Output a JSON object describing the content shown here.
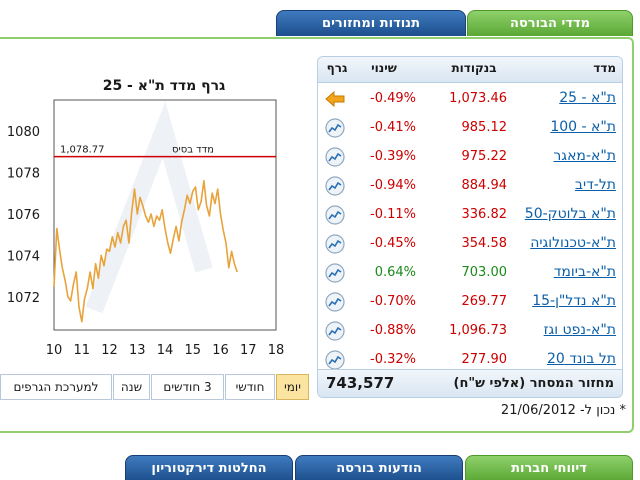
{
  "top_tabs": [
    {
      "label": "מדדי הבורסה",
      "active": true
    },
    {
      "label": "תנודות ומחזורים",
      "active": false
    }
  ],
  "table": {
    "headers": {
      "index": "מדד",
      "points": "בנקודות",
      "change": "שינוי",
      "graph": "גרף"
    },
    "rows": [
      {
        "name": "ת\"א - 25",
        "points": "1,073.46",
        "change": "-0.49%",
        "direction": "down",
        "icon": "arrow-left-icon"
      },
      {
        "name": "ת\"א - 100",
        "points": "985.12",
        "change": "-0.41%",
        "direction": "down",
        "icon": "chart-icon"
      },
      {
        "name": "ת\"א-מאגר",
        "points": "975.22",
        "change": "-0.39%",
        "direction": "down",
        "icon": "chart-icon"
      },
      {
        "name": "תל-דיב",
        "points": "884.94",
        "change": "-0.94%",
        "direction": "down",
        "icon": "chart-icon"
      },
      {
        "name": "ת\"א בלוטק-50",
        "points": "336.82",
        "change": "-0.11%",
        "direction": "down",
        "icon": "chart-icon"
      },
      {
        "name": "ת\"א-טכנולוגיה",
        "points": "354.58",
        "change": "-0.45%",
        "direction": "down",
        "icon": "chart-icon"
      },
      {
        "name": "ת\"א-ביומד",
        "points": "703.00",
        "change": "0.64%",
        "direction": "up",
        "icon": "chart-icon"
      },
      {
        "name": "ת\"א נדל\"ן-15",
        "points": "269.77",
        "change": "-0.70%",
        "direction": "down",
        "icon": "chart-icon"
      },
      {
        "name": "ת\"א-נפט וגז",
        "points": "1,096.73",
        "change": "-0.88%",
        "direction": "down",
        "icon": "chart-icon"
      },
      {
        "name": "תל בונד 20",
        "points": "277.90",
        "change": "-0.32%",
        "direction": "down",
        "icon": "chart-icon"
      }
    ],
    "footer": {
      "label": "מחזור המסחר (אלפי ש\"ח)",
      "value": "743,577"
    }
  },
  "as_of": "* נכון ל- 21/06/2012",
  "chart_data": {
    "type": "line",
    "title": "גרף מדד ת\"א - 25",
    "x_ticks": [
      "10",
      "11",
      "12",
      "13",
      "14",
      "15",
      "16",
      "17",
      "18"
    ],
    "y_ticks": [
      "1072",
      "1074",
      "1076",
      "1078",
      "1080"
    ],
    "xlim": [
      10,
      18
    ],
    "ylim": [
      1070.4,
      1081.5
    ],
    "base_line": {
      "label": "מדד בסיס",
      "value": 1078.77,
      "value_label": "1,078.77"
    },
    "grid": false,
    "series": [
      {
        "color": "#e8a33a",
        "x": [
          10.0,
          10.1,
          10.2,
          10.3,
          10.4,
          10.5,
          10.6,
          10.7,
          10.8,
          10.9,
          11.0,
          11.1,
          11.2,
          11.3,
          11.4,
          11.5,
          11.6,
          11.7,
          11.8,
          11.9,
          12.0,
          12.1,
          12.2,
          12.3,
          12.4,
          12.5,
          12.6,
          12.7,
          12.8,
          12.9,
          13.0,
          13.1,
          13.2,
          13.3,
          13.4,
          13.5,
          13.6,
          13.7,
          13.8,
          13.9,
          14.0,
          14.1,
          14.2,
          14.3,
          14.4,
          14.5,
          14.6,
          14.7,
          14.8,
          14.9,
          15.0,
          15.1,
          15.2,
          15.3,
          15.4,
          15.5,
          15.6,
          15.7,
          15.8,
          15.9,
          16.0,
          16.1,
          16.2,
          16.3,
          16.4,
          16.5,
          16.6
        ],
        "y": [
          1072.5,
          1075.3,
          1074.3,
          1073.4,
          1072.8,
          1072.0,
          1071.8,
          1072.6,
          1073.2,
          1071.5,
          1070.8,
          1071.9,
          1072.4,
          1073.2,
          1072.4,
          1073.6,
          1072.9,
          1074.0,
          1073.5,
          1074.3,
          1074.2,
          1074.9,
          1074.4,
          1075.1,
          1074.6,
          1075.4,
          1075.7,
          1074.6,
          1076.1,
          1077.2,
          1076.0,
          1076.8,
          1076.4,
          1075.9,
          1075.6,
          1076.0,
          1075.4,
          1075.9,
          1075.7,
          1076.2,
          1075.3,
          1074.6,
          1074.1,
          1074.8,
          1075.4,
          1074.7,
          1075.6,
          1076.2,
          1076.9,
          1076.5,
          1077.1,
          1077.3,
          1076.2,
          1076.6,
          1077.6,
          1076.4,
          1075.9,
          1077.0,
          1076.5,
          1077.2,
          1076.0,
          1075.2,
          1074.6,
          1073.4,
          1074.2,
          1073.6,
          1073.2
        ]
      }
    ]
  },
  "range_buttons": [
    {
      "label": "יומי",
      "active": true
    },
    {
      "label": "חודשי",
      "active": false
    },
    {
      "label": "3 חודשים",
      "active": false
    },
    {
      "label": "שנה",
      "active": false
    },
    {
      "label": "למערכת הגרפים",
      "active": false
    }
  ],
  "bottom_tabs": [
    {
      "label": "דיווחי חברות",
      "active": true
    },
    {
      "label": "הודעות בורסה",
      "active": false
    },
    {
      "label": "החלטות דירקטוריון",
      "active": false
    }
  ],
  "colors": {
    "positive": "#1a8a1a",
    "negative": "#cc0000",
    "base_line": "#cc0000",
    "link": "#0b5fa8"
  }
}
